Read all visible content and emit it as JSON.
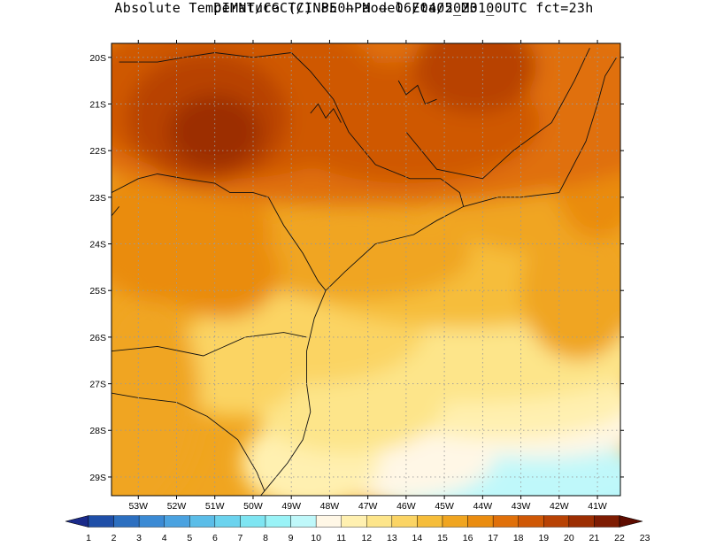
{
  "title_line1": "DIMNT/CGCT/INPE —  Model Eta05_M01_",
  "title_line2": "Absolute Temperature (C) 850hPa —  06/04/2023 00UTC fct=23h",
  "lat_labels": [
    "20S",
    "21S",
    "22S",
    "23S",
    "24S",
    "25S",
    "26S",
    "27S",
    "28S",
    "29S"
  ],
  "lat_values": [
    -20,
    -21,
    -22,
    -23,
    -24,
    -25,
    -26,
    -27,
    -28,
    -29
  ],
  "lon_labels": [
    "53W",
    "52W",
    "51W",
    "50W",
    "49W",
    "48W",
    "47W",
    "46W",
    "45W",
    "44W",
    "43W",
    "42W",
    "41W"
  ],
  "lon_values": [
    -53,
    -52,
    -51,
    -50,
    -49,
    -48,
    -47,
    -46,
    -45,
    -44,
    -43,
    -42,
    -41
  ],
  "map_extent": {
    "lon_min": -53.7,
    "lon_max": -40.4,
    "lat_min": -29.4,
    "lat_max": -19.7
  },
  "colorbar": {
    "labels": [
      "1",
      "2",
      "3",
      "4",
      "5",
      "6",
      "7",
      "8",
      "9",
      "10",
      "11",
      "12",
      "13",
      "14",
      "15",
      "16",
      "17",
      "18",
      "19",
      "20",
      "21",
      "22",
      "23"
    ],
    "colors": [
      "#1a2a8a",
      "#1f4fa8",
      "#2c6fc0",
      "#3b8ad4",
      "#4aa2e0",
      "#5bbde8",
      "#6bd3ee",
      "#7ee5f2",
      "#9af3f7",
      "#bff8fa",
      "#fff7e6",
      "#fff0b0",
      "#fde58a",
      "#fbd464",
      "#f6bd3a",
      "#f0a520",
      "#ea8c10",
      "#e0700a",
      "#cf5806",
      "#b84204",
      "#9c2e02",
      "#7e1c02",
      "#5e0c00"
    ]
  },
  "temp_field": {
    "levels": [
      10,
      11,
      12,
      13,
      14,
      15,
      16,
      17,
      18,
      19,
      20,
      21
    ],
    "note": "850hPa temperature, warm north-west, cool south-east"
  }
}
